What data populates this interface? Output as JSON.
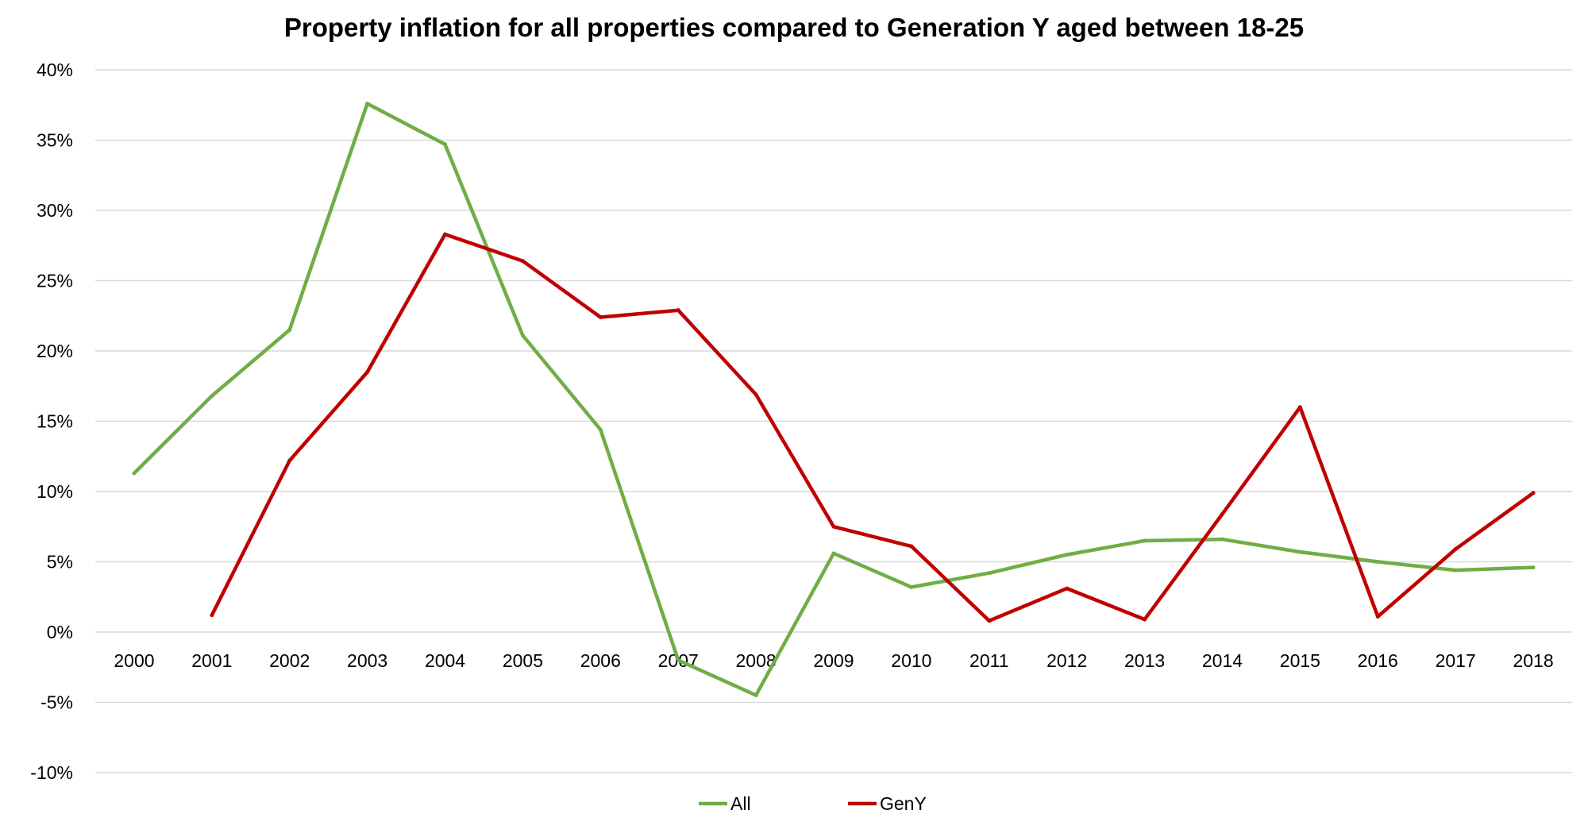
{
  "chart_data": {
    "type": "line",
    "title": "Property inflation for all properties compared to Generation Y aged between 18-25",
    "xlabel": "",
    "ylabel": "",
    "categories": [
      "2000",
      "2001",
      "2002",
      "2003",
      "2004",
      "2005",
      "2006",
      "2007",
      "2008",
      "2009",
      "2010",
      "2011",
      "2012",
      "2013",
      "2014",
      "2015",
      "2016",
      "2017",
      "2018"
    ],
    "ylim": [
      -10,
      40
    ],
    "yticks": [
      40,
      35,
      30,
      25,
      20,
      15,
      10,
      5,
      0,
      -5,
      -10
    ],
    "y_tick_labels": [
      "40%",
      "35%",
      "30%",
      "25%",
      "20%",
      "15%",
      "10%",
      "5%",
      "0%",
      "-5%",
      "-10%"
    ],
    "grid": true,
    "legend_position": "bottom",
    "series": [
      {
        "name": "All",
        "color": "#70AD47",
        "values": [
          11.3,
          16.8,
          21.5,
          37.6,
          34.7,
          21.1,
          14.4,
          -2.0,
          -4.5,
          5.6,
          3.2,
          4.2,
          5.5,
          6.5,
          6.6,
          5.7,
          5.0,
          4.4,
          4.6
        ]
      },
      {
        "name": "GenY",
        "color": "#C00000",
        "values": [
          null,
          1.2,
          12.2,
          18.5,
          28.3,
          26.4,
          22.4,
          22.9,
          16.9,
          7.5,
          6.1,
          0.8,
          3.1,
          0.9,
          8.4,
          16.0,
          1.1,
          5.9,
          9.9
        ]
      }
    ]
  }
}
